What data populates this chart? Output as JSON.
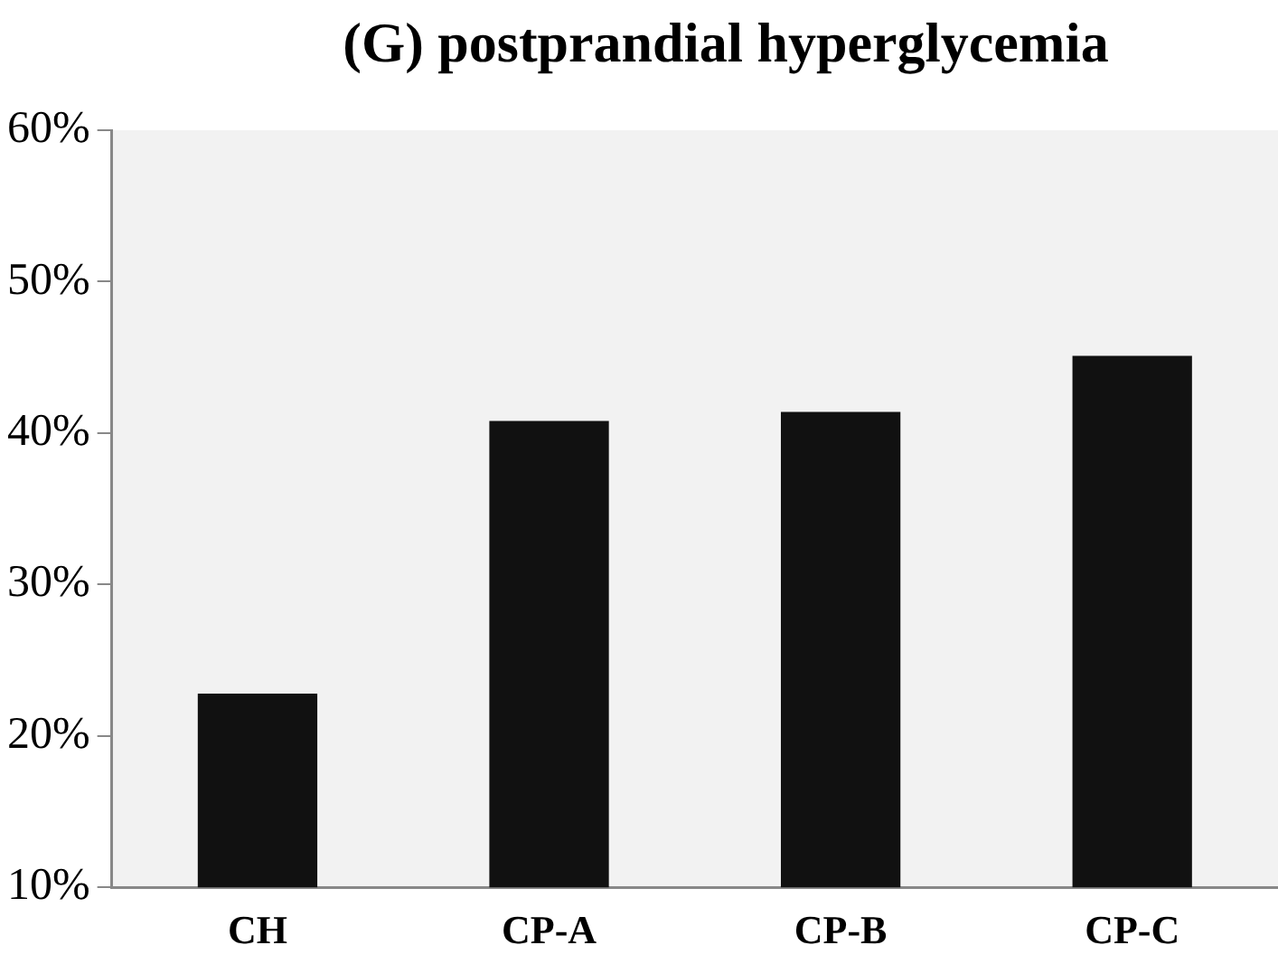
{
  "chart_data": {
    "type": "bar",
    "title": "(G)  postprandial hyperglycemia",
    "categories": [
      "CH",
      "CP-A",
      "CP-B",
      "CP-C"
    ],
    "values": [
      22.8,
      40.8,
      41.4,
      45.1
    ],
    "color": "#111111",
    "ylim": [
      10,
      60
    ],
    "yticks": [
      {
        "value": 10,
        "label": "10%"
      },
      {
        "value": 20,
        "label": "20%"
      },
      {
        "value": 30,
        "label": "30%"
      },
      {
        "value": 40,
        "label": "40%"
      },
      {
        "value": 50,
        "label": "50%"
      },
      {
        "value": 60,
        "label": "60%"
      }
    ],
    "grid": false,
    "legend": false
  }
}
